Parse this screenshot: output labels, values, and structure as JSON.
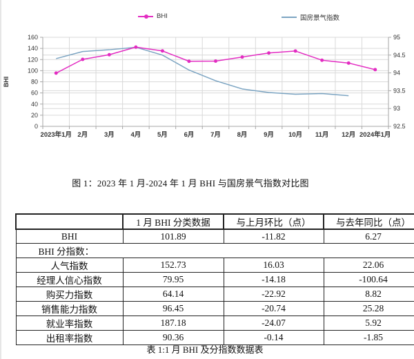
{
  "page": {
    "figure_caption": "图 1：2023 年 1 月-2024 年 1 月 BHI 与国房景气指数对比图",
    "table_caption": "表 1:1 月 BHI 及分指数数据表"
  },
  "colors": {
    "bhi_line": "#E32CC2",
    "climate_line": "#7BA4C2",
    "grid": "#D9D9D9",
    "axis": "#A6A6A6",
    "tick_text": "#333333"
  },
  "chart_data": {
    "type": "line",
    "title": "",
    "categories": [
      "2023年1月",
      "2月",
      "3月",
      "4月",
      "5月",
      "6月",
      "7月",
      "8月",
      "9月",
      "10月",
      "11月",
      "12月",
      "2024年1月"
    ],
    "series": [
      {
        "name": "BHI",
        "axis": "left",
        "color": "#E32CC2",
        "marker": "circle",
        "values": [
          95.62,
          120.3,
          128.7,
          142.3,
          135.5,
          116.9,
          117.2,
          124.5,
          131.8,
          135.3,
          118.8,
          113.71,
          101.89
        ]
      },
      {
        "name": "国房景气指数",
        "axis": "right",
        "color": "#7BA4C2",
        "marker": "none",
        "values": [
          94.4,
          94.6,
          94.65,
          94.72,
          94.5,
          94.08,
          93.78,
          93.55,
          93.45,
          93.4,
          93.42,
          93.36,
          null
        ]
      }
    ],
    "left_axis": {
      "title": "BHI",
      "min": 0,
      "max": 160,
      "step": 20,
      "ticks": [
        0,
        20,
        40,
        60,
        80,
        100,
        120,
        140,
        160
      ]
    },
    "right_axis": {
      "min": 92.5,
      "max": 95,
      "step": 0.5,
      "ticks": [
        92.5,
        93,
        93.5,
        94,
        94.5,
        95
      ]
    },
    "grid": true,
    "legend_position": "top"
  },
  "table": {
    "header": [
      "",
      "1 月 BHI 分类数据",
      "与上月环比（点）",
      "与去年同比（点）"
    ],
    "rows": [
      {
        "label": "BHI",
        "merged": false,
        "values": [
          "101.89",
          "-11.82",
          "6.27"
        ]
      },
      {
        "label": "BHI 分指数：",
        "merged": true,
        "values": []
      },
      {
        "label": "人气指数",
        "merged": false,
        "values": [
          "152.73",
          "16.03",
          "22.06"
        ]
      },
      {
        "label": "经理人信心指数",
        "merged": false,
        "values": [
          "79.95",
          "-14.18",
          "-100.64"
        ]
      },
      {
        "label": "购买力指数",
        "merged": false,
        "values": [
          "64.14",
          "-22.92",
          "8.82"
        ]
      },
      {
        "label": "销售能力指数",
        "merged": false,
        "values": [
          "96.45",
          "-20.74",
          "25.28"
        ]
      },
      {
        "label": "就业率指数",
        "merged": false,
        "values": [
          "187.18",
          "-24.07",
          "5.92"
        ]
      },
      {
        "label": "出租率指数",
        "merged": false,
        "values": [
          "90.36",
          "-0.14",
          "-1.85"
        ]
      }
    ]
  }
}
